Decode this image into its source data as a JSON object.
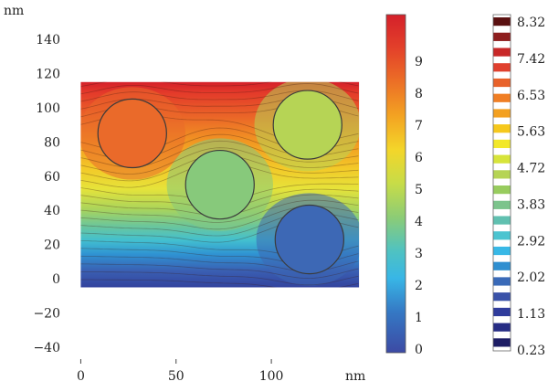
{
  "chart_data": {
    "type": "heatmap",
    "title": "",
    "x_unit": "nm",
    "y_unit": "nm",
    "xlim": [
      -5,
      145
    ],
    "ylim": [
      -48,
      148
    ],
    "x_ticks": [
      {
        "value": 0,
        "label": "0"
      },
      {
        "value": 50,
        "label": "50"
      },
      {
        "value": 100,
        "label": "100"
      }
    ],
    "y_ticks": [
      {
        "value": 140,
        "label": "140"
      },
      {
        "value": 120,
        "label": "120"
      },
      {
        "value": 100,
        "label": "100"
      },
      {
        "value": 80,
        "label": "80"
      },
      {
        "value": 60,
        "label": "60"
      },
      {
        "value": 40,
        "label": "40"
      },
      {
        "value": 20,
        "label": "20"
      },
      {
        "value": 0,
        "label": "0"
      },
      {
        "value": -20,
        "label": "−20"
      },
      {
        "value": -40,
        "label": "−40"
      }
    ],
    "domain": {
      "x": [
        0,
        146
      ],
      "y": [
        -5,
        115
      ]
    },
    "field_range": [
      0,
      10
    ],
    "circles": [
      {
        "cx": 27,
        "cy": 85,
        "r": 18,
        "value": 8.0,
        "color": "#ea6a2a"
      },
      {
        "cx": 119,
        "cy": 90,
        "r": 18,
        "value": 5.6,
        "color": "#b6d455"
      },
      {
        "cx": 73,
        "cy": 55,
        "r": 18,
        "value": 5.0,
        "color": "#87c97b"
      },
      {
        "cx": 120,
        "cy": 23,
        "r": 18,
        "value": 1.9,
        "color": "#3d68b5"
      }
    ],
    "colorbar_main": {
      "ticks": [
        {
          "value": 9,
          "label": "9"
        },
        {
          "value": 8,
          "label": "8"
        },
        {
          "value": 7,
          "label": "7"
        },
        {
          "value": 6,
          "label": "6"
        },
        {
          "value": 5,
          "label": "5"
        },
        {
          "value": 4,
          "label": "4"
        },
        {
          "value": 3,
          "label": "3"
        },
        {
          "value": 2,
          "label": "2"
        },
        {
          "value": 1,
          "label": "1"
        },
        {
          "value": 0,
          "label": "0"
        }
      ],
      "min": 0,
      "max": 10
    },
    "colorbar_contours": {
      "labels": [
        "8.32",
        "7.42",
        "6.53",
        "5.63",
        "4.72",
        "3.83",
        "2.92",
        "2.02",
        "1.13",
        "0.23"
      ],
      "stripe_colors": [
        "#5a1010",
        "#8e1e1e",
        "#c82828",
        "#e0402e",
        "#e8622a",
        "#f07e24",
        "#f3a020",
        "#f6c81c",
        "#f2e82a",
        "#d7e43a",
        "#b6d455",
        "#98cc5e",
        "#7cc48c",
        "#60c0b0",
        "#4cc4d0",
        "#38b8e6",
        "#2f8fd0",
        "#3a6ab8",
        "#3a52a8",
        "#2f3c9c",
        "#262c84",
        "#1c1c64"
      ]
    }
  }
}
